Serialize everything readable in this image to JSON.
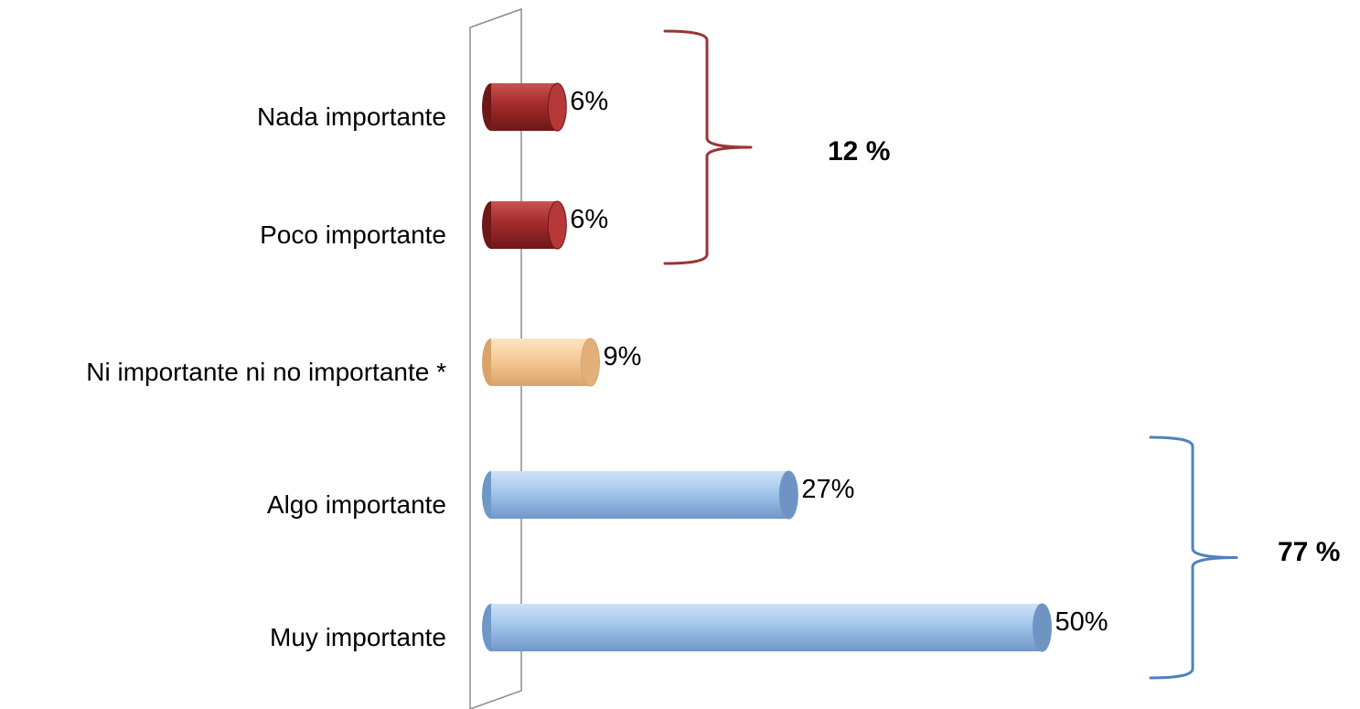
{
  "chart_data": {
    "type": "bar",
    "orientation": "horizontal",
    "categories": [
      "Nada importante",
      "Poco importante",
      "Ni importante ni no importante *",
      "Algo importante",
      "Muy importante"
    ],
    "values": [
      6,
      6,
      9,
      27,
      50
    ],
    "value_labels": [
      "6%",
      "6%",
      "9%",
      "27%",
      "50%"
    ],
    "bar_colors": [
      "#a52a2a",
      "#a52a2a",
      "#f5c99a",
      "#9fc3ea",
      "#9fc3ea"
    ],
    "bar_groups": [
      "negative",
      "negative",
      "neutral",
      "positive",
      "positive"
    ],
    "xlim": [
      0,
      55
    ],
    "grid": false,
    "groups": [
      {
        "key": "negative",
        "label": "12 %",
        "categories": [
          "Nada importante",
          "Poco importante"
        ],
        "color": "#9b3535"
      },
      {
        "key": "positive",
        "label": "77 %",
        "categories": [
          "Algo importante",
          "Muy importante"
        ],
        "color": "#4f81bd"
      }
    ],
    "palette": {
      "negative": {
        "light": "#c95252",
        "mid": "#a52a2a",
        "dark": "#6e1818",
        "cap": "#b73838"
      },
      "neutral": {
        "light": "#fde4c4",
        "mid": "#f6c995",
        "dark": "#d9a36a",
        "cap": "#e3b07a"
      },
      "positive": {
        "light": "#cfe2f7",
        "mid": "#a3c5ec",
        "dark": "#6f97c8",
        "cap": "#6f94c4"
      }
    }
  }
}
